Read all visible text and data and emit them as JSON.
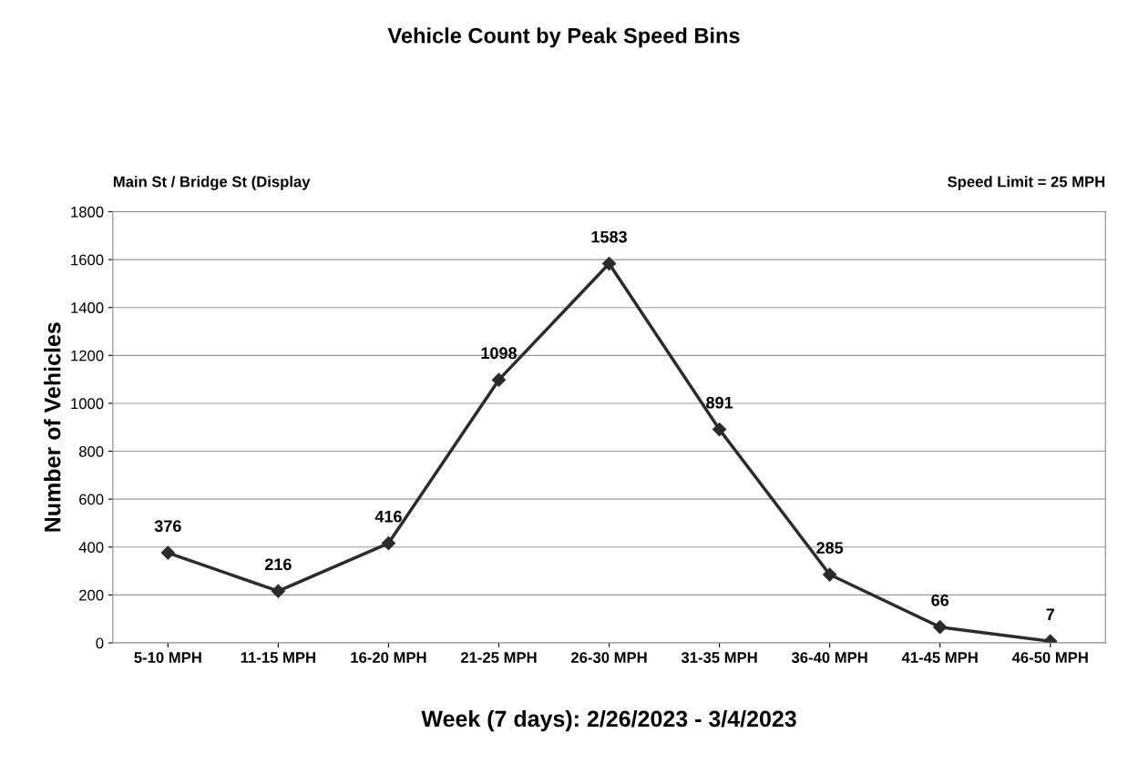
{
  "chart_data": {
    "type": "line",
    "title": "Vehicle Count by Peak Speed Bins",
    "xlabel": "Week (7 days): 2/26/2023 - 3/4/2023",
    "ylabel": "Number of Vehicles",
    "annotations": [
      "Main St / Bridge St (Display",
      "Speed Limit = 25 MPH"
    ],
    "categories": [
      "5-10 MPH",
      "11-15 MPH",
      "16-20 MPH",
      "21-25 MPH",
      "26-30 MPH",
      "31-35 MPH",
      "36-40 MPH",
      "41-45 MPH",
      "46-50 MPH"
    ],
    "series": [
      {
        "color": "#2b2b2b",
        "values": [
          376,
          216,
          416,
          1098,
          1583,
          891,
          285,
          66,
          7
        ]
      }
    ],
    "ylim": [
      0,
      1800
    ],
    "yticks": [
      0,
      200,
      400,
      600,
      800,
      1000,
      1200,
      1400,
      1600,
      1800
    ],
    "grid": "y",
    "marker": "diamond",
    "line_style": "solid",
    "data_labels": true,
    "legend": false
  }
}
